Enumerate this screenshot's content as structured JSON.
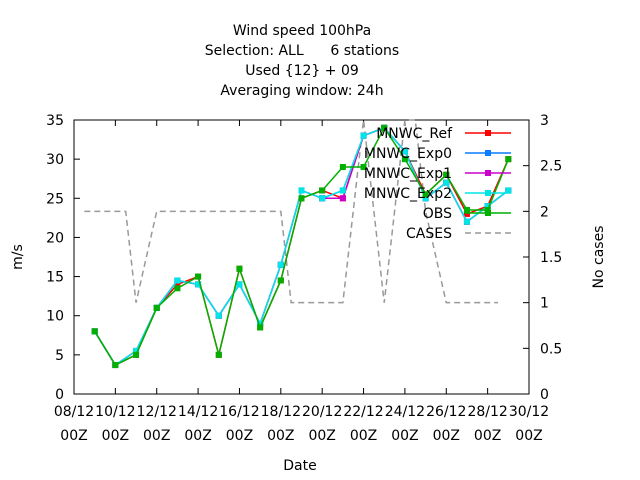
{
  "chart_data": {
    "type": "line",
    "title": [
      "Wind speed 100hPa",
      "Selection: ALL      6 stations",
      "Used {12} + 09",
      "Averaging window: 24h"
    ],
    "xlabel": "Date",
    "ylabel": "m/s",
    "y2label": "No cases",
    "xlim": [
      0,
      22
    ],
    "ylim": [
      0,
      35
    ],
    "y2lim": [
      0,
      3
    ],
    "x_ticks": [
      0,
      2,
      4,
      6,
      8,
      10,
      12,
      14,
      16,
      18,
      20,
      22
    ],
    "x_tick_labels": [
      [
        "08/12",
        "00Z"
      ],
      [
        "10/12",
        "00Z"
      ],
      [
        "12/12",
        "00Z"
      ],
      [
        "14/12",
        "00Z"
      ],
      [
        "16/12",
        "00Z"
      ],
      [
        "18/12",
        "00Z"
      ],
      [
        "20/12",
        "00Z"
      ],
      [
        "22/12",
        "00Z"
      ],
      [
        "24/12",
        "00Z"
      ],
      [
        "26/12",
        "00Z"
      ],
      [
        "28/12",
        "00Z"
      ],
      [
        "30/12",
        "00Z"
      ]
    ],
    "y_ticks": [
      0,
      5,
      10,
      15,
      20,
      25,
      30,
      35
    ],
    "y2_ticks": [
      0,
      0.5,
      1,
      1.5,
      2,
      2.5,
      3
    ],
    "y2_tick_labels": [
      "0",
      "0.5",
      "1",
      "1.5",
      "2",
      "2.5",
      "3"
    ],
    "grid": false,
    "legend_position": "top-right",
    "x": [
      1,
      2,
      3,
      4,
      5,
      6,
      7,
      8,
      9,
      10,
      11,
      12,
      13,
      14,
      15,
      16,
      17,
      18,
      19,
      20,
      21
    ],
    "series": [
      {
        "name": "MNWC_Ref",
        "color": "#ff0000",
        "marker": "square",
        "values": [
          8,
          3.7,
          5,
          11,
          14,
          15,
          5,
          16,
          8.5,
          14.5,
          25,
          26,
          25,
          33,
          34,
          31,
          25.5,
          28,
          23,
          24,
          30
        ]
      },
      {
        "name": "MNWC_Exp0",
        "color": "#0a7cff",
        "marker": "square",
        "values": [
          8,
          3.7,
          5.5,
          11,
          14.5,
          14,
          10,
          14,
          9,
          16.5,
          26,
          25,
          26,
          33,
          34,
          31,
          25,
          27,
          22,
          24,
          26
        ]
      },
      {
        "name": "MNWC_Exp1",
        "color": "#cc00cc",
        "marker": "square",
        "values": [
          8,
          3.7,
          5.5,
          11,
          14.5,
          14,
          10,
          14,
          9,
          16.5,
          26,
          25,
          25,
          33,
          34,
          31,
          25,
          27,
          22,
          24,
          26
        ]
      },
      {
        "name": "MNWC_Exp2",
        "color": "#00e5e5",
        "marker": "square",
        "values": [
          8,
          3.7,
          5.5,
          11,
          14.5,
          14,
          10,
          14,
          9,
          16.5,
          26,
          25,
          26,
          33,
          34,
          31,
          25,
          27,
          22,
          24,
          26
        ]
      },
      {
        "name": "OBS",
        "color": "#00b000",
        "marker": "square",
        "values": [
          8,
          3.7,
          5,
          11,
          13.5,
          15,
          5,
          16,
          8.5,
          14.5,
          25,
          26,
          29,
          29,
          34,
          30,
          25.5,
          28,
          23.5,
          23.5,
          30
        ]
      }
    ],
    "cases": {
      "name": "CASES",
      "color": "#999999",
      "axis": "y2",
      "x": [
        0.5,
        1,
        2,
        2.5,
        3,
        4,
        5,
        6,
        7,
        8,
        9,
        10,
        10.5,
        11,
        12,
        13,
        13.5,
        14,
        14.5,
        15,
        15.5,
        16,
        16.5,
        17,
        18,
        18.5,
        19,
        20,
        20.5
      ],
      "values": [
        2,
        2,
        2,
        2,
        1,
        2,
        2,
        2,
        2,
        2,
        2,
        2,
        1,
        1,
        1,
        1,
        2,
        3,
        2,
        1,
        2,
        3,
        3,
        2,
        1,
        1,
        1,
        1,
        1
      ]
    }
  }
}
